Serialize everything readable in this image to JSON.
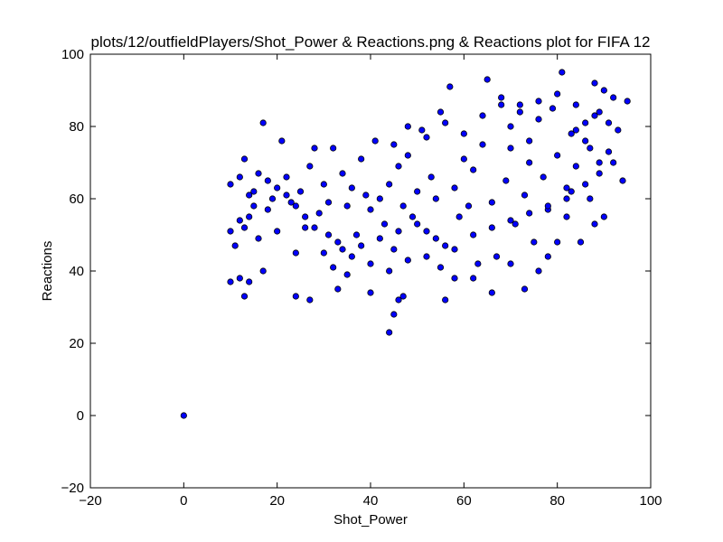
{
  "chart_data": {
    "type": "scatter",
    "title": "plots/12/outfieldPlayers/Shot_Power & Reactions.png & Reactions plot for FIFA 12",
    "xlabel": "Shot_Power",
    "ylabel": "Reactions",
    "xlim": [
      -20,
      100
    ],
    "ylim": [
      -20,
      100
    ],
    "xticks": [
      -20,
      0,
      20,
      40,
      60,
      80,
      100
    ],
    "yticks": [
      -20,
      0,
      20,
      40,
      60,
      80,
      100
    ],
    "xtick_labels": [
      "−20",
      "0",
      "20",
      "40",
      "60",
      "80",
      "100"
    ],
    "ytick_labels": [
      "−20",
      "0",
      "20",
      "40",
      "60",
      "80",
      "100"
    ],
    "grid": false,
    "legend": "none",
    "marker_color": "#0000ff",
    "marker_edge": "#000000",
    "series": [
      {
        "points": [
          [
            0,
            0
          ],
          [
            44,
            23
          ],
          [
            46,
            32
          ],
          [
            47,
            33
          ],
          [
            56,
            32
          ],
          [
            45,
            28
          ],
          [
            10,
            37
          ],
          [
            12,
            38
          ],
          [
            13,
            33
          ],
          [
            14,
            37
          ],
          [
            17,
            40
          ],
          [
            24,
            33
          ],
          [
            27,
            32
          ],
          [
            33,
            35
          ],
          [
            40,
            34
          ],
          [
            10,
            51
          ],
          [
            11,
            47
          ],
          [
            12,
            54
          ],
          [
            10,
            64
          ],
          [
            12,
            66
          ],
          [
            13,
            71
          ],
          [
            14,
            61
          ],
          [
            15,
            58
          ],
          [
            16,
            49
          ],
          [
            17,
            81
          ],
          [
            18,
            57
          ],
          [
            19,
            60
          ],
          [
            20,
            51
          ],
          [
            21,
            76
          ],
          [
            22,
            66
          ],
          [
            23,
            59
          ],
          [
            24,
            45
          ],
          [
            25,
            62
          ],
          [
            26,
            52
          ],
          [
            27,
            69
          ],
          [
            28,
            74
          ],
          [
            29,
            56
          ],
          [
            30,
            64
          ],
          [
            31,
            59
          ],
          [
            32,
            74
          ],
          [
            33,
            48
          ],
          [
            34,
            67
          ],
          [
            35,
            58
          ],
          [
            36,
            63
          ],
          [
            37,
            50
          ],
          [
            38,
            71
          ],
          [
            39,
            61
          ],
          [
            40,
            57
          ],
          [
            41,
            76
          ],
          [
            42,
            60
          ],
          [
            43,
            53
          ],
          [
            44,
            64
          ],
          [
            45,
            46
          ],
          [
            46,
            69
          ],
          [
            47,
            58
          ],
          [
            48,
            72
          ],
          [
            49,
            55
          ],
          [
            50,
            62
          ],
          [
            51,
            79
          ],
          [
            52,
            51
          ],
          [
            53,
            66
          ],
          [
            54,
            60
          ],
          [
            55,
            84
          ],
          [
            56,
            47
          ],
          [
            57,
            91
          ],
          [
            58,
            63
          ],
          [
            59,
            55
          ],
          [
            60,
            71
          ],
          [
            61,
            58
          ],
          [
            62,
            68
          ],
          [
            63,
            42
          ],
          [
            64,
            75
          ],
          [
            65,
            93
          ],
          [
            66,
            59
          ],
          [
            67,
            44
          ],
          [
            68,
            88
          ],
          [
            69,
            65
          ],
          [
            70,
            80
          ],
          [
            71,
            53
          ],
          [
            72,
            86
          ],
          [
            73,
            61
          ],
          [
            74,
            70
          ],
          [
            75,
            48
          ],
          [
            76,
            82
          ],
          [
            77,
            66
          ],
          [
            78,
            57
          ],
          [
            79,
            85
          ],
          [
            80,
            72
          ],
          [
            81,
            95
          ],
          [
            82,
            63
          ],
          [
            83,
            78
          ],
          [
            84,
            69
          ],
          [
            85,
            48
          ],
          [
            86,
            81
          ],
          [
            87,
            74
          ],
          [
            88,
            92
          ],
          [
            89,
            67
          ],
          [
            90,
            90
          ],
          [
            91,
            73
          ],
          [
            92,
            88
          ],
          [
            93,
            79
          ],
          [
            94,
            65
          ],
          [
            95,
            87
          ],
          [
            88,
            53
          ],
          [
            90,
            55
          ],
          [
            87,
            60
          ],
          [
            89,
            84
          ],
          [
            91,
            81
          ],
          [
            92,
            70
          ],
          [
            86,
            76
          ],
          [
            84,
            79
          ],
          [
            83,
            62
          ],
          [
            82,
            55
          ],
          [
            80,
            48
          ],
          [
            78,
            44
          ],
          [
            76,
            40
          ],
          [
            73,
            35
          ],
          [
            70,
            42
          ],
          [
            66,
            34
          ],
          [
            62,
            38
          ],
          [
            58,
            38
          ],
          [
            55,
            41
          ],
          [
            52,
            44
          ],
          [
            48,
            43
          ],
          [
            44,
            40
          ],
          [
            40,
            42
          ],
          [
            36,
            44
          ],
          [
            34,
            46
          ],
          [
            31,
            50
          ],
          [
            28,
            52
          ],
          [
            26,
            55
          ],
          [
            24,
            58
          ],
          [
            22,
            61
          ],
          [
            20,
            63
          ],
          [
            18,
            65
          ],
          [
            16,
            67
          ],
          [
            15,
            62
          ],
          [
            14,
            55
          ],
          [
            13,
            52
          ],
          [
            30,
            45
          ],
          [
            32,
            41
          ],
          [
            35,
            39
          ],
          [
            38,
            47
          ],
          [
            42,
            49
          ],
          [
            46,
            51
          ],
          [
            50,
            53
          ],
          [
            54,
            49
          ],
          [
            58,
            46
          ],
          [
            62,
            50
          ],
          [
            66,
            52
          ],
          [
            70,
            54
          ],
          [
            74,
            56
          ],
          [
            78,
            58
          ],
          [
            82,
            60
          ],
          [
            86,
            64
          ],
          [
            89,
            70
          ],
          [
            45,
            75
          ],
          [
            48,
            80
          ],
          [
            52,
            77
          ],
          [
            56,
            81
          ],
          [
            60,
            78
          ],
          [
            64,
            83
          ],
          [
            68,
            86
          ],
          [
            72,
            84
          ],
          [
            76,
            87
          ],
          [
            80,
            89
          ],
          [
            84,
            86
          ],
          [
            88,
            83
          ],
          [
            74,
            76
          ],
          [
            70,
            74
          ]
        ]
      }
    ]
  }
}
